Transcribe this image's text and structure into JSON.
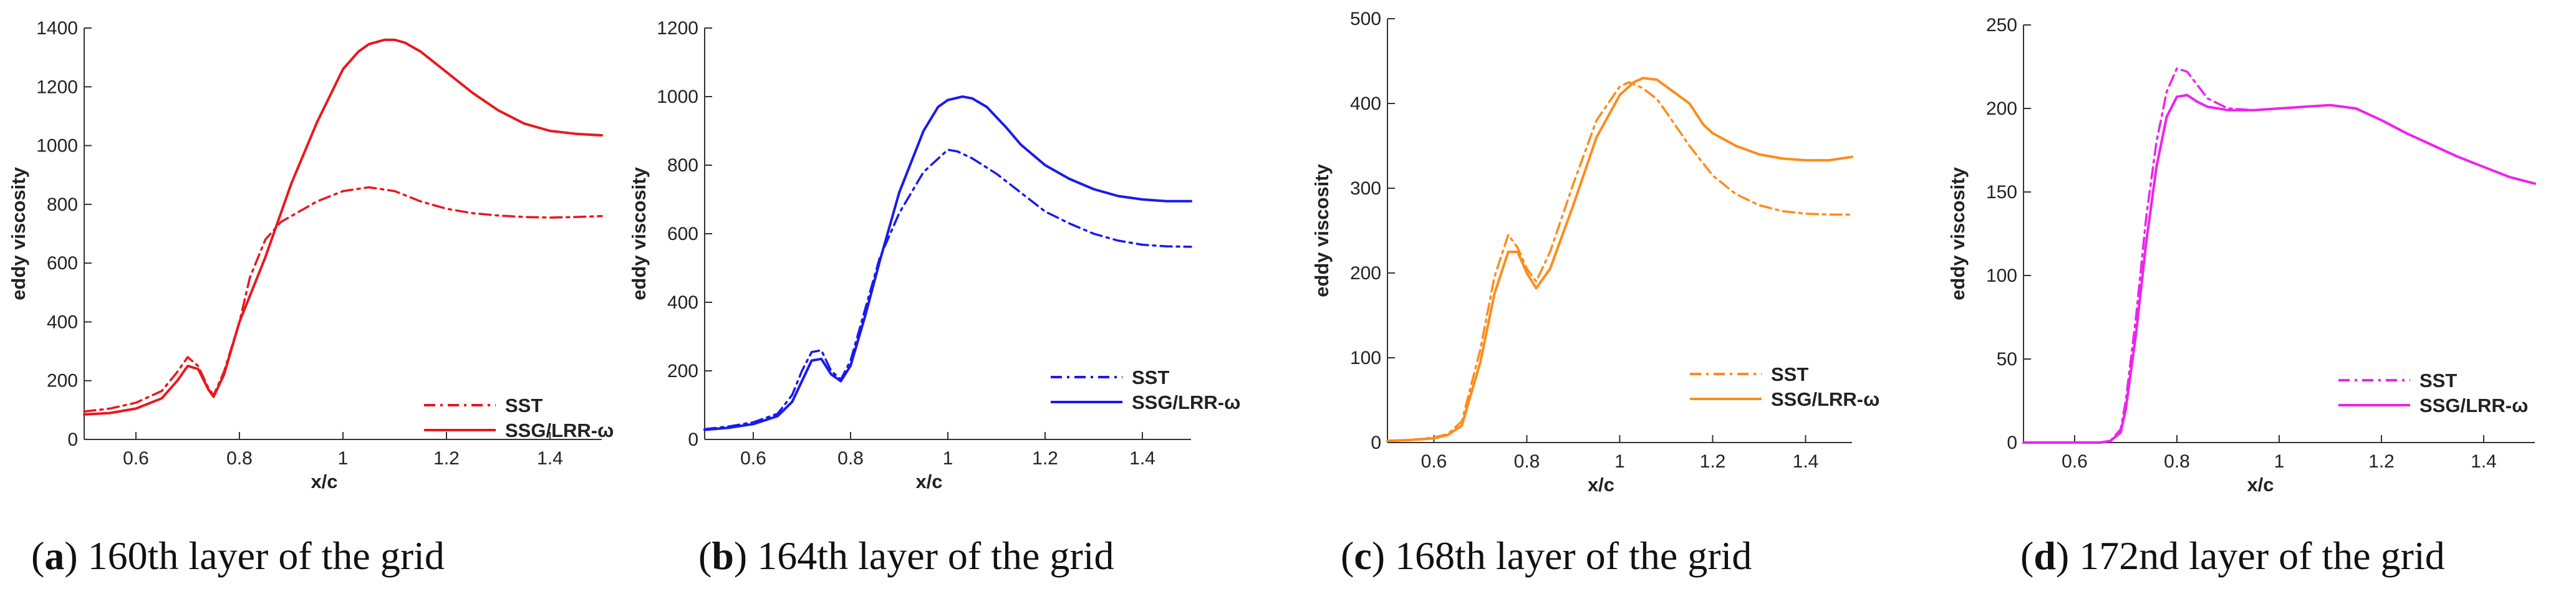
{
  "panels": [
    {
      "letter": "a",
      "caption_rest": "160th layer of the grid",
      "color": "#e8181e",
      "chart_data": {
        "type": "line",
        "title": "",
        "xlabel": "x/c",
        "ylabel": "eddy viscosity",
        "xlim": [
          0.5,
          1.5
        ],
        "ylim": [
          0,
          1400
        ],
        "xticks": [
          0.6,
          0.8,
          1,
          1.2,
          1.4
        ],
        "xtick_labels": [
          "0.6",
          "0.8",
          "1",
          "1.2",
          "1.4"
        ],
        "yticks": [
          0,
          200,
          400,
          600,
          800,
          1000,
          1200,
          1400
        ],
        "ytick_labels": [
          "0",
          "200",
          "400",
          "600",
          "800",
          "1000",
          "1200",
          "1400"
        ],
        "legend_position": "bottom-right",
        "series": [
          {
            "name": "SST",
            "style": "dashdot",
            "x": [
              0.5,
              0.55,
              0.6,
              0.65,
              0.68,
              0.7,
              0.72,
              0.74,
              0.75,
              0.77,
              0.8,
              0.82,
              0.85,
              0.88,
              0.9,
              0.95,
              1.0,
              1.05,
              1.1,
              1.15,
              1.2,
              1.25,
              1.3,
              1.35,
              1.4,
              1.45,
              1.5
            ],
            "y": [
              95,
              105,
              125,
              165,
              230,
              280,
              250,
              175,
              150,
              230,
              400,
              550,
              680,
              740,
              760,
              810,
              845,
              858,
              845,
              810,
              785,
              770,
              762,
              757,
              755,
              757,
              760
            ]
          },
          {
            "name": "SSG/LRR-ω",
            "style": "solid",
            "x": [
              0.5,
              0.55,
              0.6,
              0.65,
              0.68,
              0.7,
              0.72,
              0.74,
              0.75,
              0.77,
              0.8,
              0.85,
              0.9,
              0.95,
              1.0,
              1.03,
              1.05,
              1.08,
              1.1,
              1.12,
              1.15,
              1.2,
              1.25,
              1.3,
              1.35,
              1.4,
              1.45,
              1.5
            ],
            "y": [
              85,
              90,
              105,
              140,
              200,
              250,
              240,
              170,
              145,
              220,
              400,
              620,
              870,
              1080,
              1260,
              1320,
              1345,
              1360,
              1360,
              1350,
              1320,
              1250,
              1180,
              1120,
              1075,
              1050,
              1040,
              1035
            ]
          }
        ]
      }
    },
    {
      "letter": "b",
      "caption_rest": "164th layer of the grid",
      "color": "#1a1aee",
      "chart_data": {
        "type": "line",
        "title": "",
        "xlabel": "x/c",
        "ylabel": "eddy viscosity",
        "xlim": [
          0.5,
          1.5
        ],
        "ylim": [
          0,
          1200
        ],
        "xticks": [
          0.6,
          0.8,
          1,
          1.2,
          1.4
        ],
        "xtick_labels": [
          "0.6",
          "0.8",
          "1",
          "1.2",
          "1.4"
        ],
        "yticks": [
          0,
          200,
          400,
          600,
          800,
          1000,
          1200
        ],
        "ytick_labels": [
          "0",
          "200",
          "400",
          "600",
          "800",
          "1000",
          "1200"
        ],
        "legend_position": "bottom-right",
        "series": [
          {
            "name": "SST",
            "style": "dashdot",
            "x": [
              0.5,
              0.55,
              0.6,
              0.65,
              0.68,
              0.7,
              0.72,
              0.74,
              0.76,
              0.78,
              0.8,
              0.83,
              0.86,
              0.9,
              0.95,
              1.0,
              1.02,
              1.05,
              1.1,
              1.15,
              1.2,
              1.25,
              1.3,
              1.35,
              1.4,
              1.45,
              1.5
            ],
            "y": [
              30,
              38,
              50,
              75,
              130,
              200,
              255,
              260,
              200,
              175,
              230,
              380,
              530,
              660,
              780,
              845,
              840,
              820,
              775,
              720,
              665,
              630,
              600,
              580,
              568,
              563,
              562
            ]
          },
          {
            "name": "SSG/LRR-ω",
            "style": "solid",
            "x": [
              0.5,
              0.55,
              0.6,
              0.65,
              0.68,
              0.7,
              0.72,
              0.74,
              0.76,
              0.78,
              0.8,
              0.83,
              0.86,
              0.9,
              0.95,
              0.98,
              1.0,
              1.03,
              1.05,
              1.08,
              1.12,
              1.15,
              1.2,
              1.25,
              1.3,
              1.35,
              1.4,
              1.45,
              1.5
            ],
            "y": [
              28,
              34,
              45,
              68,
              110,
              170,
              230,
              235,
              190,
              170,
              215,
              360,
              520,
              720,
              900,
              970,
              990,
              1000,
              995,
              970,
              910,
              860,
              800,
              760,
              730,
              710,
              700,
              695,
              695
            ]
          }
        ]
      }
    },
    {
      "letter": "c",
      "caption_rest": "168th layer of the grid",
      "color": "#ff8b1a",
      "chart_data": {
        "type": "line",
        "title": "",
        "xlabel": "x/c",
        "ylabel": "eddy viscosity",
        "xlim": [
          0.5,
          1.5
        ],
        "ylim": [
          0,
          500
        ],
        "xticks": [
          0.6,
          0.8,
          1,
          1.2,
          1.4
        ],
        "xtick_labels": [
          "0.6",
          "0.8",
          "1",
          "1.2",
          "1.4"
        ],
        "yticks": [
          0,
          100,
          200,
          300,
          400,
          500
        ],
        "ytick_labels": [
          "0",
          "100",
          "200",
          "300",
          "400",
          "500"
        ],
        "legend_position": "bottom-right",
        "series": [
          {
            "name": "SST",
            "style": "dashdot",
            "x": [
              0.5,
              0.55,
              0.6,
              0.63,
              0.66,
              0.7,
              0.73,
              0.76,
              0.78,
              0.8,
              0.82,
              0.85,
              0.9,
              0.95,
              1.0,
              1.02,
              1.05,
              1.08,
              1.1,
              1.15,
              1.2,
              1.25,
              1.3,
              1.35,
              1.4,
              1.45,
              1.5
            ],
            "y": [
              2,
              3,
              6,
              10,
              25,
              110,
              195,
              245,
              230,
              205,
              190,
              225,
              305,
              380,
              420,
              425,
              418,
              405,
              390,
              350,
              315,
              293,
              280,
              273,
              270,
              269,
              269
            ]
          },
          {
            "name": "SSG/LRR-ω",
            "style": "solid",
            "x": [
              0.5,
              0.55,
              0.6,
              0.63,
              0.66,
              0.7,
              0.73,
              0.76,
              0.78,
              0.8,
              0.82,
              0.85,
              0.9,
              0.95,
              1.0,
              1.03,
              1.05,
              1.08,
              1.1,
              1.15,
              1.18,
              1.2,
              1.25,
              1.3,
              1.35,
              1.4,
              1.45,
              1.5
            ],
            "y": [
              2,
              3,
              5,
              9,
              20,
              95,
              175,
              225,
              225,
              200,
              182,
              205,
              280,
              360,
              410,
              425,
              430,
              428,
              420,
              400,
              375,
              365,
              350,
              340,
              335,
              333,
              333,
              337
            ]
          }
        ]
      }
    },
    {
      "letter": "d",
      "caption_rest": "172nd layer of the grid",
      "color": "#ee22ee",
      "chart_data": {
        "type": "line",
        "title": "",
        "xlabel": "x/c",
        "ylabel": "eddy viscosity",
        "xlim": [
          0.5,
          1.5
        ],
        "ylim": [
          0,
          250
        ],
        "xticks": [
          0.6,
          0.8,
          1,
          1.2,
          1.4
        ],
        "xtick_labels": [
          "0.6",
          "0.8",
          "1",
          "1.2",
          "1.4"
        ],
        "yticks": [
          0,
          50,
          100,
          150,
          200,
          250
        ],
        "ytick_labels": [
          "0",
          "50",
          "100",
          "150",
          "200",
          "250"
        ],
        "legend_position": "bottom-right",
        "series": [
          {
            "name": "SST",
            "style": "dashdot",
            "x": [
              0.5,
              0.6,
              0.65,
              0.67,
              0.69,
              0.7,
              0.72,
              0.74,
              0.76,
              0.78,
              0.8,
              0.82,
              0.84,
              0.86,
              0.9,
              0.95,
              1.0,
              1.05,
              1.1,
              1.15,
              1.2,
              1.25,
              1.3,
              1.35,
              1.4,
              1.45,
              1.5
            ],
            "y": [
              0,
              0,
              0,
              1,
              8,
              25,
              75,
              135,
              180,
              210,
              224,
              222,
              214,
              206,
              200,
              199,
              200,
              201,
              202,
              200,
              193,
              185,
              178,
              171,
              165,
              159,
              155
            ]
          },
          {
            "name": "SSG/LRR-ω",
            "style": "solid",
            "x": [
              0.5,
              0.6,
              0.65,
              0.67,
              0.69,
              0.7,
              0.72,
              0.74,
              0.76,
              0.78,
              0.8,
              0.82,
              0.84,
              0.86,
              0.9,
              0.95,
              1.0,
              1.05,
              1.1,
              1.15,
              1.2,
              1.25,
              1.3,
              1.35,
              1.4,
              1.45,
              1.5
            ],
            "y": [
              0,
              0,
              0,
              1,
              6,
              20,
              65,
              120,
              165,
              195,
              207,
              208,
              204,
              201,
              199,
              199,
              200,
              201,
              202,
              200,
              193,
              185,
              178,
              171,
              165,
              159,
              155
            ]
          }
        ]
      }
    }
  ]
}
